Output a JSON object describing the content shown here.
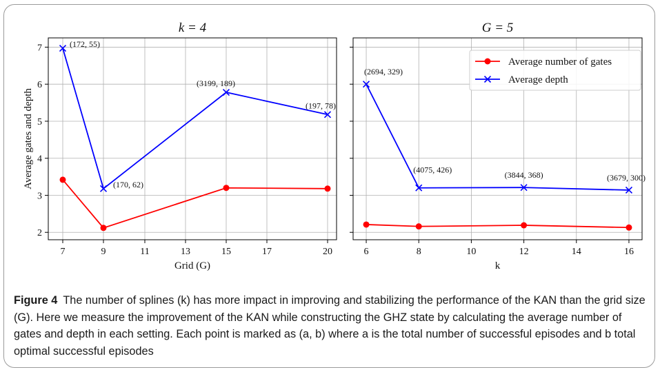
{
  "figure": {
    "label": "Figure 4",
    "caption": "The number of splines (k) has more impact in improving and stabilizing the performance of the KAN than the grid size (G). Here we measure the improvement of the KAN while constructing the GHZ state by calculating the average number of gates and depth in each setting. Each point is marked as (a, b) where a is the total number of successful episodes and b total optimal successful episodes"
  },
  "chart_data": [
    {
      "type": "line",
      "title": "k = 4",
      "xlabel": "Grid (G)",
      "ylabel": "Average gates and depth",
      "x": [
        7,
        9,
        15,
        20
      ],
      "xticks": [
        "7",
        "9",
        "11",
        "13",
        "15",
        "17",
        "20"
      ],
      "xscale": "categorical-like (20 placed right after 17)",
      "ylim": [
        1.8,
        7.25
      ],
      "yticks": [
        2,
        3,
        4,
        5,
        6,
        7
      ],
      "grid": true,
      "series": [
        {
          "name": "Average number of gates",
          "color": "#ff0000",
          "marker": "circle",
          "values": [
            3.42,
            2.12,
            3.2,
            3.18
          ]
        },
        {
          "name": "Average depth",
          "color": "#0000ff",
          "marker": "x",
          "values": [
            6.97,
            3.18,
            5.78,
            5.18
          ]
        }
      ],
      "annotations": [
        "(172, 55)",
        "(170, 62)",
        "(3199, 189)",
        "(197, 78)"
      ]
    },
    {
      "type": "line",
      "title": "G = 5",
      "xlabel": "k",
      "ylabel": "",
      "x": [
        6,
        8,
        12,
        16
      ],
      "xticks": [
        "6",
        "8",
        "10",
        "12",
        "14",
        "16"
      ],
      "xlim": [
        5.5,
        16.5
      ],
      "ylim": [
        1.8,
        7.25
      ],
      "grid": true,
      "legend": "top-right",
      "series": [
        {
          "name": "Average number of gates",
          "color": "#ff0000",
          "marker": "circle",
          "values": [
            2.21,
            2.16,
            2.19,
            2.13
          ]
        },
        {
          "name": "Average depth",
          "color": "#0000ff",
          "marker": "x",
          "values": [
            6.0,
            3.2,
            3.21,
            3.14
          ]
        }
      ],
      "annotations": [
        "(2694, 329)",
        "(4075, 426)",
        "(3844, 368)",
        "(3679, 300)"
      ]
    }
  ]
}
